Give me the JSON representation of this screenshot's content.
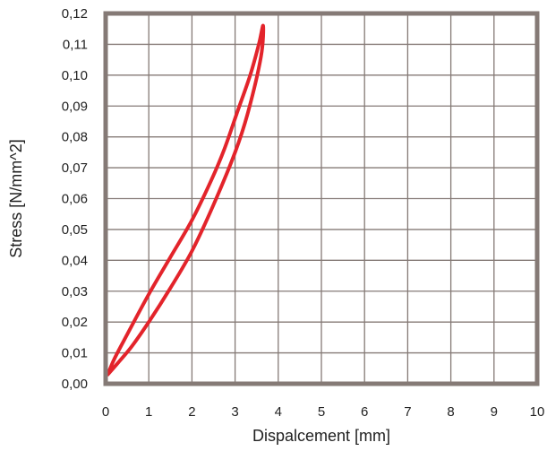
{
  "chart_data": {
    "type": "line",
    "title": "",
    "xlabel": "Dispalcement [mm]",
    "ylabel": "Stress [N/mm^2]",
    "xlim": [
      0,
      10
    ],
    "ylim": [
      0,
      0.12
    ],
    "xticks": [
      0,
      1,
      2,
      3,
      4,
      5,
      6,
      7,
      8,
      9,
      10
    ],
    "xtick_labels": [
      "0",
      "1",
      "2",
      "3",
      "4",
      "5",
      "6",
      "7",
      "8",
      "9",
      "10"
    ],
    "yticks": [
      0,
      0.01,
      0.02,
      0.03,
      0.04,
      0.05,
      0.06,
      0.07,
      0.08,
      0.09,
      0.1,
      0.11,
      0.12
    ],
    "ytick_labels": [
      "0,00",
      "0,01",
      "0,02",
      "0,03",
      "0,04",
      "0,05",
      "0,06",
      "0,07",
      "0,08",
      "0,09",
      "0,10",
      "0,11",
      "0,12"
    ],
    "grid": true,
    "legend": "none",
    "series": [
      {
        "color": "#e3242b",
        "x": [
          0.05,
          0.3,
          0.6,
          1.0,
          1.5,
          2.0,
          2.5,
          3.0,
          3.3,
          3.6,
          3.65,
          3.55,
          3.35,
          3.05,
          2.75,
          2.45,
          2.0,
          1.5,
          1.0,
          0.5,
          0.2,
          0.05
        ],
        "y": [
          0.003,
          0.007,
          0.012,
          0.02,
          0.031,
          0.043,
          0.058,
          0.075,
          0.088,
          0.106,
          0.116,
          0.11,
          0.1,
          0.088,
          0.076,
          0.066,
          0.053,
          0.041,
          0.029,
          0.016,
          0.008,
          0.003
        ]
      }
    ]
  },
  "colors": {
    "frame": "#857a76",
    "grid": "#857a76",
    "series": "#e3242b"
  }
}
